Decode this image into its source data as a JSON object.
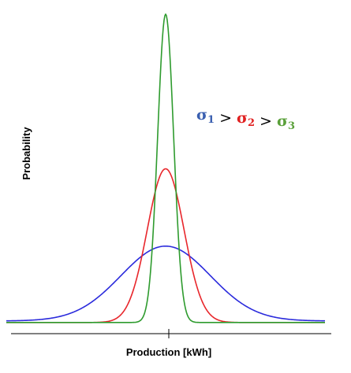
{
  "chart_data": {
    "type": "line",
    "title": "",
    "xlabel": "Production [kWh]",
    "ylabel": "Probability",
    "center_tick": 0,
    "xlim": [
      -1,
      1
    ],
    "ylim": [
      0,
      1
    ],
    "grid": false,
    "legend": "none",
    "series": [
      {
        "name": "",
        "color": "#2b2bdc",
        "sigma": 0.28,
        "peak": 0.25,
        "base": 0.008
      },
      {
        "name": "",
        "color": "#e8262b",
        "sigma": 0.115,
        "peak": 0.5,
        "base": 0.003
      },
      {
        "name": "",
        "color": "#2e9b2e",
        "sigma": 0.05,
        "peak": 1.0,
        "base": 0.003
      }
    ],
    "annotation": {
      "parts": [
        {
          "text": "σ",
          "sub": "1",
          "color": "#3a5fb0"
        },
        {
          "op": ">"
        },
        {
          "text": "σ",
          "sub": "2",
          "color": "#e02020"
        },
        {
          "op": ">"
        },
        {
          "text": "σ",
          "sub": "3",
          "color": "#5aa03a"
        }
      ]
    }
  }
}
